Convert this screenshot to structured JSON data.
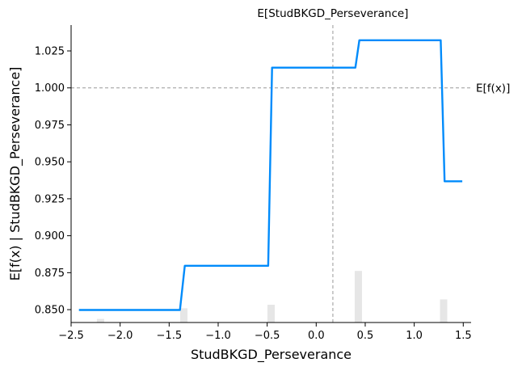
{
  "chart_data": {
    "type": "line",
    "title": "",
    "xlabel": "StudBKGD_Perseverance",
    "ylabel": "E[f(x) | StudBKGD_Perseverance]",
    "xlim": [
      -2.5,
      1.58
    ],
    "ylim": [
      0.8413,
      1.0425
    ],
    "xticks": [
      -2.5,
      -2.0,
      -1.5,
      -1.0,
      -0.5,
      0.0,
      0.5,
      1.0,
      1.5
    ],
    "xtick_labels": [
      "−2.5",
      "−2.0",
      "−1.5",
      "−1.0",
      "−0.5",
      "0.0",
      "0.5",
      "1.0",
      "1.5"
    ],
    "yticks": [
      0.85,
      0.875,
      0.9,
      0.925,
      0.95,
      0.975,
      1.0,
      1.025
    ],
    "ytick_labels": [
      "0.850",
      "0.875",
      "0.900",
      "0.925",
      "0.950",
      "0.975",
      "1.000",
      "1.025"
    ],
    "series": [
      {
        "color": "#008bfb",
        "x": [
          -2.42,
          -1.39,
          -1.34,
          -0.49,
          -0.45,
          0.4,
          0.44,
          1.27,
          1.31,
          1.49
        ],
        "y": [
          0.8498,
          0.8498,
          0.8797,
          0.8797,
          1.0137,
          1.0137,
          1.0322,
          1.0322,
          0.9368,
          0.9368
        ]
      }
    ],
    "histogram": {
      "color": "#e6e6e6",
      "bars": [
        {
          "x": -2.2,
          "height": 0.2
        },
        {
          "x": -1.35,
          "height": 0.8
        },
        {
          "x": -0.46,
          "height": 1.0
        },
        {
          "x": 0.43,
          "height": 2.9
        },
        {
          "x": 1.3,
          "height": 1.3
        }
      ]
    },
    "reference_lines": {
      "color": "#999999",
      "hline": {
        "y": 1.0,
        "label": "E[f(x)]"
      },
      "vline": {
        "x": 0.17,
        "label": "E[StudBKGD_Perseverance]"
      }
    },
    "grid": false,
    "legend": "none"
  }
}
